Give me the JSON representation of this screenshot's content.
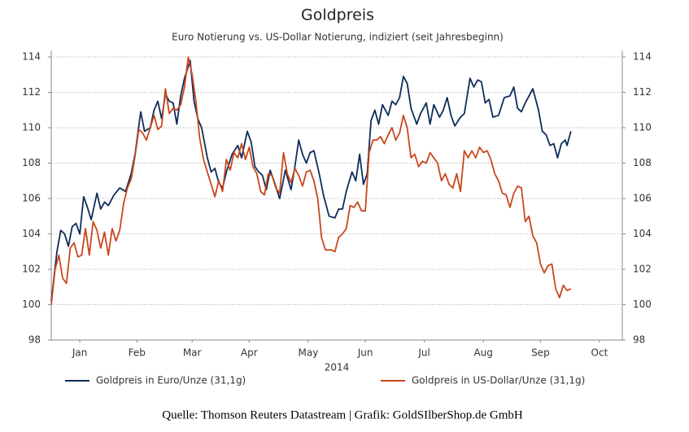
{
  "chart_data": {
    "type": "line",
    "title": "Goldpreis",
    "subtitle": "Euro Notierung vs. US-Dollar Notierung, indiziert (seit Jahresbeginn)",
    "x_label": "2014",
    "source": "Quelle: Thomson Reuters Datastream | Grafik: GoldSIlberShop.de GmbH",
    "xlim": [
      0,
      300
    ],
    "xticks": [
      {
        "value": 15,
        "label": "Jan"
      },
      {
        "value": 45,
        "label": "Feb"
      },
      {
        "value": 74,
        "label": "Mar"
      },
      {
        "value": 104,
        "label": "Apr"
      },
      {
        "value": 135,
        "label": "May"
      },
      {
        "value": 165,
        "label": "Jun"
      },
      {
        "value": 196,
        "label": "Jul"
      },
      {
        "value": 227,
        "label": "Aug"
      },
      {
        "value": 257,
        "label": "Sep"
      },
      {
        "value": 288,
        "label": "Oct"
      }
    ],
    "ylim": [
      98,
      114
    ],
    "yticks": [
      98,
      100,
      102,
      104,
      106,
      108,
      110,
      112,
      114
    ],
    "y2lim": [
      98,
      114
    ],
    "y2ticks": [
      98,
      100,
      102,
      104,
      106,
      108,
      110,
      112,
      114
    ],
    "grid": true,
    "legend": "bottom",
    "series": [
      {
        "name": "Goldpreis in Euro/Unze (31,1g)",
        "color": "#0d2c5c",
        "x": [
          0,
          3,
          5,
          7,
          9,
          11,
          13,
          15,
          17,
          19,
          21,
          24,
          26,
          28,
          30,
          33,
          36,
          39,
          42,
          44,
          47,
          49,
          52,
          54,
          56,
          58,
          60,
          62,
          64,
          66,
          68,
          70,
          73,
          75,
          77,
          79,
          82,
          84,
          86,
          88,
          90,
          92,
          95,
          98,
          100,
          103,
          105,
          107,
          109,
          111,
          113,
          115,
          117,
          120,
          123,
          126,
          128,
          130,
          132,
          134,
          136,
          138,
          141,
          143,
          146,
          149,
          151,
          153,
          155,
          158,
          160,
          162,
          164,
          166,
          168,
          170,
          172,
          174,
          177,
          179,
          181,
          183,
          185,
          187,
          189,
          192,
          194,
          197,
          199,
          201,
          204,
          206,
          208,
          210,
          212,
          215,
          217,
          220,
          222,
          224,
          226,
          228,
          230,
          232,
          235,
          238,
          241,
          243,
          245,
          247,
          249,
          251,
          253,
          256,
          258,
          260,
          262,
          264,
          266,
          268,
          270,
          271,
          273
        ],
        "values": [
          100.2,
          103,
          104.2,
          104,
          103.3,
          104.4,
          104.6,
          104,
          106.1,
          105.5,
          104.8,
          106.3,
          105.4,
          105.8,
          105.6,
          106.2,
          106.6,
          106.4,
          107.4,
          108.5,
          110.9,
          109.8,
          110,
          111,
          111.5,
          110.5,
          111.9,
          111.5,
          111.4,
          110.2,
          111.8,
          112.8,
          113.8,
          111.5,
          110.5,
          110,
          108.3,
          107.5,
          107.7,
          106.9,
          106.6,
          107.5,
          108.5,
          109,
          108.3,
          109.8,
          109.2,
          107.8,
          107.5,
          107.3,
          106.5,
          107.6,
          107,
          106,
          107.6,
          106.5,
          107.8,
          109.3,
          108.5,
          108,
          108.6,
          108.7,
          107.3,
          106.2,
          105,
          104.9,
          105.4,
          105.4,
          106.4,
          107.5,
          107,
          108.5,
          106.8,
          107.4,
          110.4,
          111,
          110.2,
          111.3,
          110.7,
          111.5,
          111.3,
          111.7,
          112.9,
          112.5,
          111.1,
          110.2,
          110.8,
          111.4,
          110.2,
          111.3,
          110.6,
          111,
          111.7,
          110.7,
          110.1,
          110.6,
          110.8,
          112.8,
          112.3,
          112.7,
          112.6,
          111.4,
          111.6,
          110.6,
          110.7,
          111.7,
          111.8,
          112.3,
          111.1,
          110.9,
          111.4,
          111.8,
          112.2,
          111,
          109.8,
          109.6,
          109,
          109.1,
          108.3,
          109.1,
          109.3,
          109,
          109.8
        ]
      },
      {
        "name": "Goldpreis in US-Dollar/Unze (31,1g)",
        "color": "#c9471b",
        "x": [
          0,
          2,
          4,
          6,
          8,
          10,
          12,
          14,
          16,
          18,
          20,
          22,
          24,
          26,
          28,
          30,
          32,
          34,
          36,
          38,
          40,
          42,
          44,
          46,
          48,
          50,
          52,
          54,
          56,
          58,
          60,
          62,
          64,
          66,
          68,
          70,
          72,
          74,
          76,
          78,
          80,
          82,
          84,
          86,
          88,
          90,
          92,
          94,
          96,
          98,
          100,
          102,
          104,
          106,
          108,
          110,
          112,
          114,
          116,
          118,
          120,
          122,
          124,
          126,
          128,
          130,
          132,
          134,
          136,
          138,
          140,
          142,
          144,
          147,
          149,
          151,
          153,
          155,
          157,
          159,
          161,
          163,
          165,
          167,
          169,
          171,
          173,
          175,
          177,
          179,
          181,
          183,
          185,
          187,
          189,
          191,
          193,
          195,
          197,
          199,
          201,
          203,
          205,
          207,
          209,
          211,
          213,
          215,
          217,
          219,
          221,
          223,
          225,
          227,
          229,
          231,
          233,
          235,
          237,
          239,
          241,
          243,
          245,
          247,
          249,
          251,
          253,
          255,
          257,
          259,
          261,
          263,
          265,
          267,
          269,
          271,
          273
        ],
        "values": [
          100,
          102,
          102.8,
          101.5,
          101.2,
          103.2,
          103.5,
          102.7,
          102.8,
          104.3,
          102.8,
          104.7,
          104.2,
          103.2,
          104.1,
          102.8,
          104.3,
          103.6,
          104.2,
          105.7,
          106.6,
          107.1,
          108.4,
          109.9,
          109.7,
          109.3,
          110,
          110.7,
          109.9,
          110.1,
          112.2,
          110.8,
          111.1,
          111,
          111.3,
          112.3,
          114,
          113,
          111.5,
          109.4,
          108.2,
          107.5,
          106.8,
          106.1,
          107,
          106.4,
          108.2,
          107.6,
          108.6,
          108.3,
          109.1,
          108.2,
          108.9,
          107.8,
          107.4,
          106.4,
          106.2,
          107.4,
          107.3,
          106.6,
          106.3,
          108.6,
          107.4,
          106.9,
          107.7,
          107.3,
          106.7,
          107.5,
          107.6,
          107,
          106,
          103.8,
          103.1,
          103.1,
          103,
          103.8,
          104,
          104.3,
          105.6,
          105.5,
          105.8,
          105.3,
          105.3,
          108.6,
          109.3,
          109.3,
          109.5,
          109.1,
          109.6,
          110,
          109.3,
          109.7,
          110.7,
          110,
          108.3,
          108.5,
          107.8,
          108.1,
          108,
          108.6,
          108.3,
          108,
          107,
          107.4,
          106.8,
          106.6,
          107.4,
          106.4,
          108.7,
          108.3,
          108.7,
          108.3,
          108.9,
          108.6,
          108.7,
          108.2,
          107.4,
          107,
          106.3,
          106.2,
          105.5,
          106.3,
          106.7,
          106.6,
          104.7,
          105,
          103.9,
          103.5,
          102.3,
          101.8,
          102.2,
          102.3,
          100.9,
          100.4,
          101.1,
          100.8,
          100.9
        ]
      }
    ]
  }
}
